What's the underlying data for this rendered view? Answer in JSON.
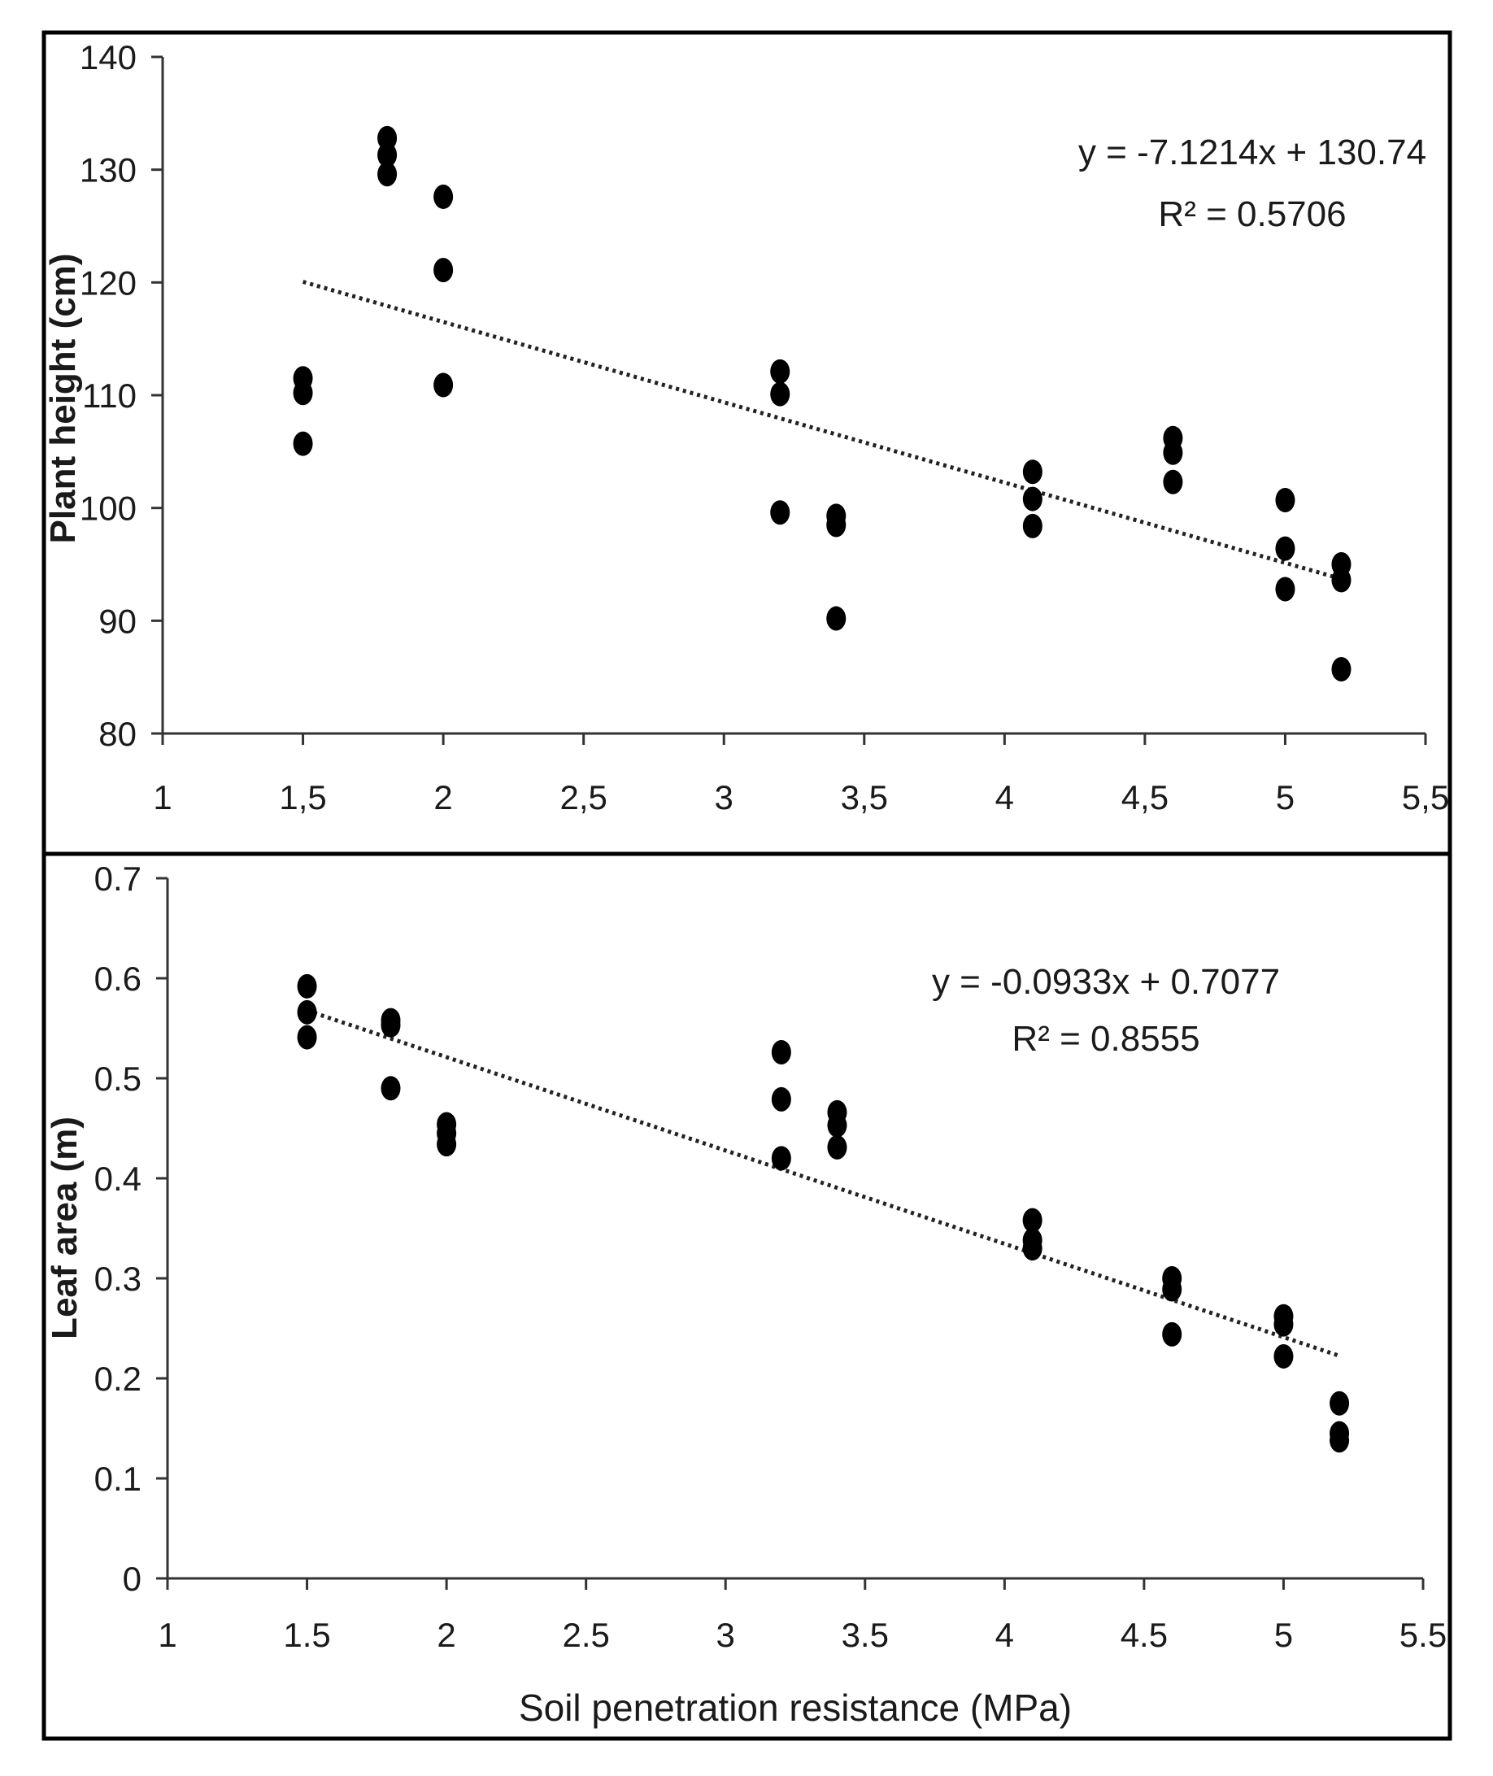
{
  "chart_data": [
    {
      "type": "scatter",
      "id": "plant-height",
      "xlabel": "",
      "ylabel": "Plant height (cm)",
      "xlim": [
        1,
        5.5
      ],
      "ylim": [
        80,
        140
      ],
      "x_ticks": [
        1,
        1.5,
        2,
        2.5,
        3,
        3.5,
        4,
        4.5,
        5,
        5.5
      ],
      "x_tick_labels": [
        "1",
        "1,5",
        "2",
        "2,5",
        "3",
        "3,5",
        "4",
        "4,5",
        "5",
        "5,5"
      ],
      "y_ticks": [
        80,
        90,
        100,
        110,
        120,
        130,
        140
      ],
      "y_tick_labels": [
        "80",
        "90",
        "100",
        "110",
        "120",
        "130",
        "140"
      ],
      "series": [
        {
          "name": "Plant height",
          "points": [
            [
              1.5,
              111.5
            ],
            [
              1.5,
              110.2
            ],
            [
              1.5,
              105.7
            ],
            [
              1.8,
              132.8
            ],
            [
              1.8,
              131.3
            ],
            [
              1.8,
              129.6
            ],
            [
              2,
              127.6
            ],
            [
              2,
              121.1
            ],
            [
              2,
              110.9
            ],
            [
              3.2,
              112.1
            ],
            [
              3.2,
              110.1
            ],
            [
              3.2,
              99.6
            ],
            [
              3.4,
              99.3
            ],
            [
              3.4,
              98.5
            ],
            [
              3.4,
              90.2
            ],
            [
              4.1,
              103.2
            ],
            [
              4.1,
              100.8
            ],
            [
              4.1,
              98.4
            ],
            [
              4.6,
              106.2
            ],
            [
              4.6,
              104.9
            ],
            [
              4.6,
              102.3
            ],
            [
              5,
              100.7
            ],
            [
              5,
              96.4
            ],
            [
              5,
              92.8
            ],
            [
              5.2,
              95.0
            ],
            [
              5.2,
              93.6
            ],
            [
              5.2,
              85.7
            ]
          ]
        }
      ],
      "trendline": {
        "slope": -7.1214,
        "intercept": 130.74,
        "x_range": [
          1.5,
          5.2
        ],
        "style": "dotted"
      },
      "equation": "y = -7.1214x + 130.74",
      "r_squared": "R² = 0.5706"
    },
    {
      "type": "scatter",
      "id": "leaf-area",
      "xlabel": "Soil penetration resistance (MPa)",
      "ylabel": "Leaf area (m)",
      "xlim": [
        1,
        5.5
      ],
      "ylim": [
        0,
        0.7
      ],
      "x_ticks": [
        1,
        1.5,
        2,
        2.5,
        3,
        3.5,
        4,
        4.5,
        5,
        5.5
      ],
      "x_tick_labels": [
        "1",
        "1.5",
        "2",
        "2.5",
        "3",
        "3.5",
        "4",
        "4.5",
        "5",
        "5.5"
      ],
      "y_ticks": [
        0,
        0.1,
        0.2,
        0.3,
        0.4,
        0.5,
        0.6,
        0.7
      ],
      "y_tick_labels": [
        "0",
        "0.1",
        "0.2",
        "0.3",
        "0.4",
        "0.5",
        "0.6",
        "0.7"
      ],
      "series": [
        {
          "name": "Leaf area",
          "points": [
            [
              1.5,
              0.592
            ],
            [
              1.5,
              0.566
            ],
            [
              1.5,
              0.541
            ],
            [
              1.8,
              0.558
            ],
            [
              1.8,
              0.553
            ],
            [
              1.8,
              0.49
            ],
            [
              2,
              0.454
            ],
            [
              2,
              0.445
            ],
            [
              2,
              0.434
            ],
            [
              3.2,
              0.526
            ],
            [
              3.2,
              0.479
            ],
            [
              3.2,
              0.42
            ],
            [
              3.4,
              0.466
            ],
            [
              3.4,
              0.453
            ],
            [
              3.4,
              0.431
            ],
            [
              4.1,
              0.358
            ],
            [
              4.1,
              0.338
            ],
            [
              4.1,
              0.33
            ],
            [
              4.6,
              0.3
            ],
            [
              4.6,
              0.289
            ],
            [
              4.6,
              0.244
            ],
            [
              5,
              0.262
            ],
            [
              5,
              0.254
            ],
            [
              5,
              0.222
            ],
            [
              5.2,
              0.175
            ],
            [
              5.2,
              0.145
            ],
            [
              5.2,
              0.138
            ]
          ]
        }
      ],
      "trendline": {
        "slope": -0.0933,
        "intercept": 0.7077,
        "x_range": [
          1.5,
          5.2
        ],
        "style": "dotted"
      },
      "equation": "y = -0.0933x + 0.7077",
      "r_squared": "R² = 0.8555"
    }
  ]
}
